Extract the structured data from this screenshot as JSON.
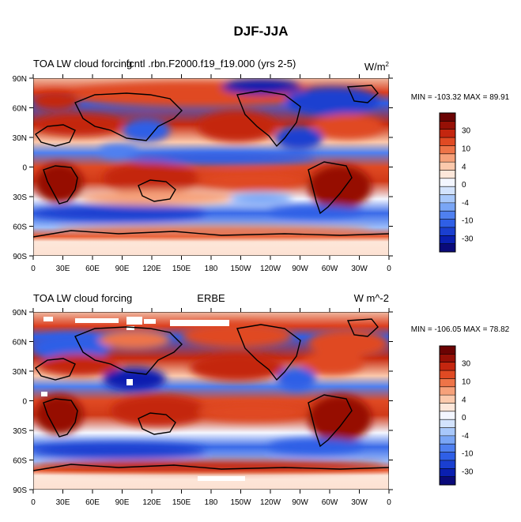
{
  "figure": {
    "title": "DJF-JJA"
  },
  "colormap": [
    "#0a0a7a",
    "#0a1fb0",
    "#1a3fd0",
    "#2f5fe6",
    "#4f80f0",
    "#7aa6f6",
    "#a8c8fb",
    "#d3e3fd",
    "#f3f6ff",
    "#fde7da",
    "#fbc9ac",
    "#f6a17a",
    "#ee7448",
    "#e04a23",
    "#c4260f",
    "#961006",
    "#6b0303"
  ],
  "chart_data": [
    {
      "type": "heatmap",
      "name": "model",
      "title_left": "TOA LW cloud forcing",
      "title_center": "fcntl .rbn.F2000.f19_f19.000 (yrs 2-5)",
      "units_base": "W/m",
      "units_sup": "2",
      "stats": "MIN = -103.32 MAX =  89.91",
      "xtick_labels": [
        "0",
        "30E",
        "60E",
        "90E",
        "120E",
        "150E",
        "180",
        "150W",
        "120W",
        "90W",
        "60W",
        "30W",
        "0"
      ],
      "ytick_labels": [
        "90N",
        "60N",
        "30N",
        "0",
        "30S",
        "60S",
        "90S"
      ],
      "colorbar_labels": [
        "30",
        "10",
        "4",
        "0",
        "-4",
        "-10",
        "-30"
      ],
      "xlim": [
        0,
        360
      ],
      "ylim": [
        -90,
        90
      ],
      "vmin": -103.32,
      "vmax": 89.91
    },
    {
      "type": "heatmap",
      "name": "obs",
      "title_left": "TOA LW cloud forcing",
      "title_center": "ERBE",
      "units_base": "W m^-2",
      "units_sup": "",
      "stats": "MIN = -106.05 MAX =  78.82",
      "xtick_labels": [
        "0",
        "30E",
        "60E",
        "90E",
        "120E",
        "150E",
        "180",
        "150W",
        "120W",
        "90W",
        "60W",
        "30W",
        "0"
      ],
      "ytick_labels": [
        "90N",
        "60N",
        "30N",
        "0",
        "30S",
        "60S",
        "90S"
      ],
      "colorbar_labels": [
        "30",
        "10",
        "4",
        "0",
        "-4",
        "-10",
        "-30"
      ],
      "xlim": [
        0,
        360
      ],
      "ylim": [
        -90,
        90
      ],
      "vmin": -106.05,
      "vmax": 78.82
    }
  ]
}
